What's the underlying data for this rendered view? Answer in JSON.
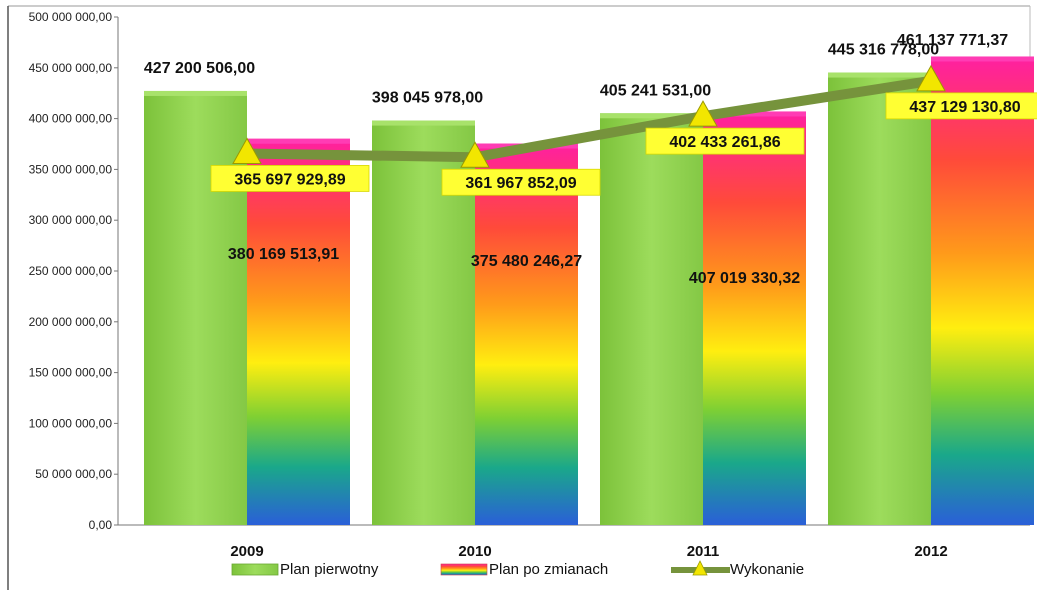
{
  "chart_data": {
    "type": "bar",
    "categories": [
      "2009",
      "2010",
      "2011",
      "2012"
    ],
    "ylim": [
      0,
      500000000
    ],
    "yticks": [
      0,
      50000000,
      100000000,
      150000000,
      200000000,
      250000000,
      300000000,
      350000000,
      400000000,
      450000000,
      500000000
    ],
    "ytick_labels": [
      "0,00",
      "50 000 000,00",
      "100 000 000,00",
      "150 000 000,00",
      "200 000 000,00",
      "250 000 000,00",
      "300 000 000,00",
      "350 000 000,00",
      "400 000 000,00",
      "450 000 000,00",
      "500 000 000,00"
    ],
    "series": [
      {
        "name": "Plan pierwotny",
        "kind": "bar",
        "color": "#8fd14f",
        "values": [
          427200506.0,
          398045978.0,
          405241531.0,
          445316778.0
        ],
        "labels": [
          "427 200 506,00",
          "398 045 978,00",
          "405 241 531,00",
          "445 316 778,00"
        ]
      },
      {
        "name": "Plan po zmianach",
        "kind": "bar",
        "color": "rainbow-gradient",
        "values": [
          380169513.91,
          375480246.27,
          407019330.32,
          461137771.37
        ],
        "labels": [
          "380 169 513,91",
          "375 480 246,27",
          "407 019 330,32",
          "461 137 771,37"
        ]
      },
      {
        "name": "Wykonanie",
        "kind": "line",
        "color": "#76933c",
        "marker_color": "#f2e600",
        "values": [
          365697929.89,
          361967852.09,
          402433261.86,
          437129130.8
        ],
        "labels": [
          "365 697 929,89",
          "361 967 852,09",
          "402 433 261,86",
          "437 129 130,80"
        ]
      }
    ],
    "legend_position": "bottom",
    "grid": false
  }
}
